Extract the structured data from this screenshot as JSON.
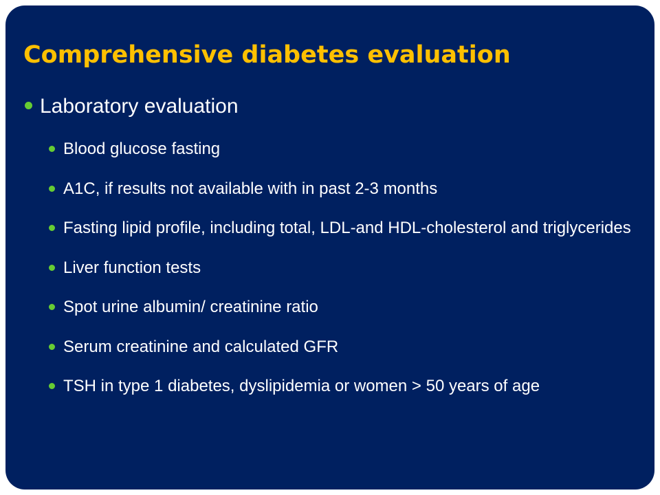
{
  "slide": {
    "title": "Comprehensive diabetes evaluation",
    "section": "Laboratory evaluation",
    "items": [
      "Blood glucose fasting",
      "A1C,  if results not available  with in past 2-3 months",
      "Fasting lipid profile, including total, LDL-and HDL-cholesterol and triglycerides",
      "Liver function tests",
      "Spot urine albumin/ creatinine ratio",
      "Serum creatinine and calculated GFR",
      "TSH in type 1 diabetes, dyslipidemia or women > 50 years of age"
    ]
  },
  "colors": {
    "background": "#002060",
    "title": "#ffc000",
    "text": "#ffffff",
    "bullet": "#66cc33"
  }
}
